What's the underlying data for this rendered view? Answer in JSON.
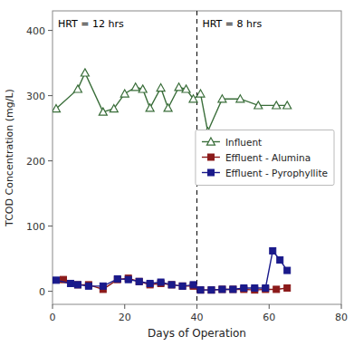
{
  "chart_data": {
    "type": "line",
    "xlabel": "Days of Operation",
    "ylabel": "TCOD Concentration (mg/L)",
    "annotations": [
      "HRT = 12 hrs",
      "HRT = 8 hrs"
    ],
    "vlines": [
      40
    ],
    "series": [
      {
        "name": "Influent",
        "color": "#3a6e3a",
        "marker": "triangle-open",
        "x": [
          1,
          7,
          9,
          14,
          17,
          20,
          23,
          25,
          27,
          30,
          32,
          35,
          37,
          39,
          41,
          43,
          47,
          52,
          57,
          62,
          65
        ],
        "values": [
          280,
          310,
          335,
          275,
          280,
          303,
          313,
          310,
          281,
          312,
          281,
          313,
          310,
          295,
          303,
          245,
          295,
          295,
          285,
          285,
          285
        ]
      },
      {
        "name": "Effluent - Alumina",
        "color": "#8b1a1a",
        "marker": "square",
        "x": [
          3,
          7,
          10,
          14,
          18,
          21,
          24,
          27,
          30,
          33,
          36,
          39,
          41,
          44,
          47,
          50,
          53,
          56,
          59,
          62,
          65
        ],
        "values": [
          18,
          10,
          10,
          3,
          18,
          20,
          15,
          10,
          12,
          10,
          8,
          8,
          2,
          2,
          3,
          3,
          3,
          2,
          3,
          3,
          5
        ]
      },
      {
        "name": "Effluent - Pyrophyllite",
        "color": "#1a1a8b",
        "marker": "square",
        "x": [
          1,
          5,
          7,
          10,
          14,
          18,
          21,
          24,
          27,
          30,
          33,
          36,
          39,
          41,
          44,
          47,
          50,
          53,
          56,
          59,
          61,
          63,
          65
        ],
        "values": [
          17,
          12,
          10,
          8,
          8,
          19,
          18,
          15,
          12,
          14,
          10,
          8,
          10,
          2,
          2,
          3,
          3,
          5,
          5,
          5,
          62,
          48,
          32
        ]
      }
    ],
    "xlim": [
      0,
      80
    ],
    "ylim": [
      -20,
      430
    ],
    "xticks": [
      0,
      20,
      40,
      60,
      80
    ],
    "yticks": [
      0,
      100,
      200,
      300,
      400
    ],
    "grid": false,
    "legend": "right"
  }
}
